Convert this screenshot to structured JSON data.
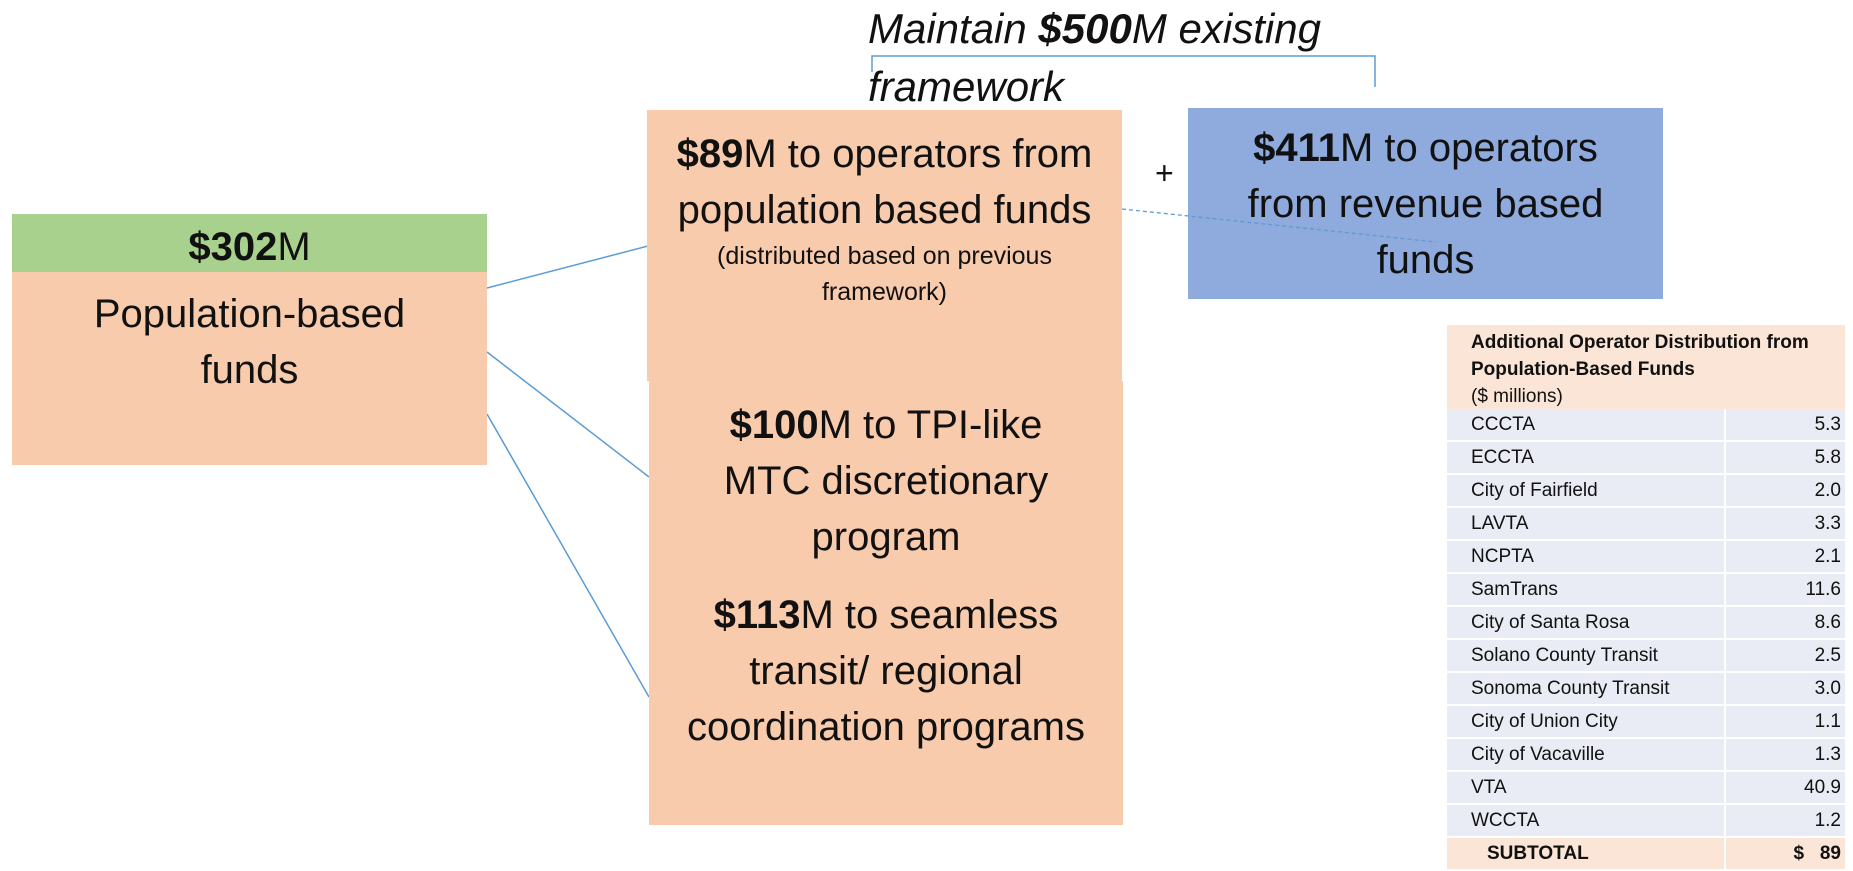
{
  "header": {
    "amount": "$500",
    "prefix": "Maintain ",
    "suffix": "M existing framework"
  },
  "plus": "+",
  "source": {
    "amount": "$302",
    "unit": "M",
    "label": "Population-based funds"
  },
  "boxes": [
    {
      "amount": "$89",
      "text": "M to operators from population based funds",
      "note": "(distributed based on previous framework)"
    },
    {
      "amount": "$100",
      "text": "M to TPI-like MTC discretionary program"
    },
    {
      "amount": "$113",
      "text": "M to seamless transit/ regional coordination programs"
    },
    {
      "amount": "$411",
      "text": "M to operators from revenue based funds"
    }
  ],
  "table": {
    "title": "Additional Operator Distribution from Population-Based Funds",
    "unit": "($ millions)",
    "rows": [
      [
        "CCCTA",
        "5.3"
      ],
      [
        "ECCTA",
        "5.8"
      ],
      [
        "City of Fairfield",
        "2.0"
      ],
      [
        "LAVTA",
        "3.3"
      ],
      [
        "NCPTA",
        "2.1"
      ],
      [
        "SamTrans",
        "11.6"
      ],
      [
        "City of Santa Rosa",
        "8.6"
      ],
      [
        "Solano County Transit",
        "2.5"
      ],
      [
        "Sonoma County Transit",
        "3.0"
      ],
      [
        "City of Union City",
        "1.1"
      ],
      [
        "City of Vacaville",
        "1.3"
      ],
      [
        "VTA",
        "40.9"
      ],
      [
        "WCCTA",
        "1.2"
      ]
    ],
    "total": [
      "SUBTOTAL",
      "$   89"
    ]
  }
}
